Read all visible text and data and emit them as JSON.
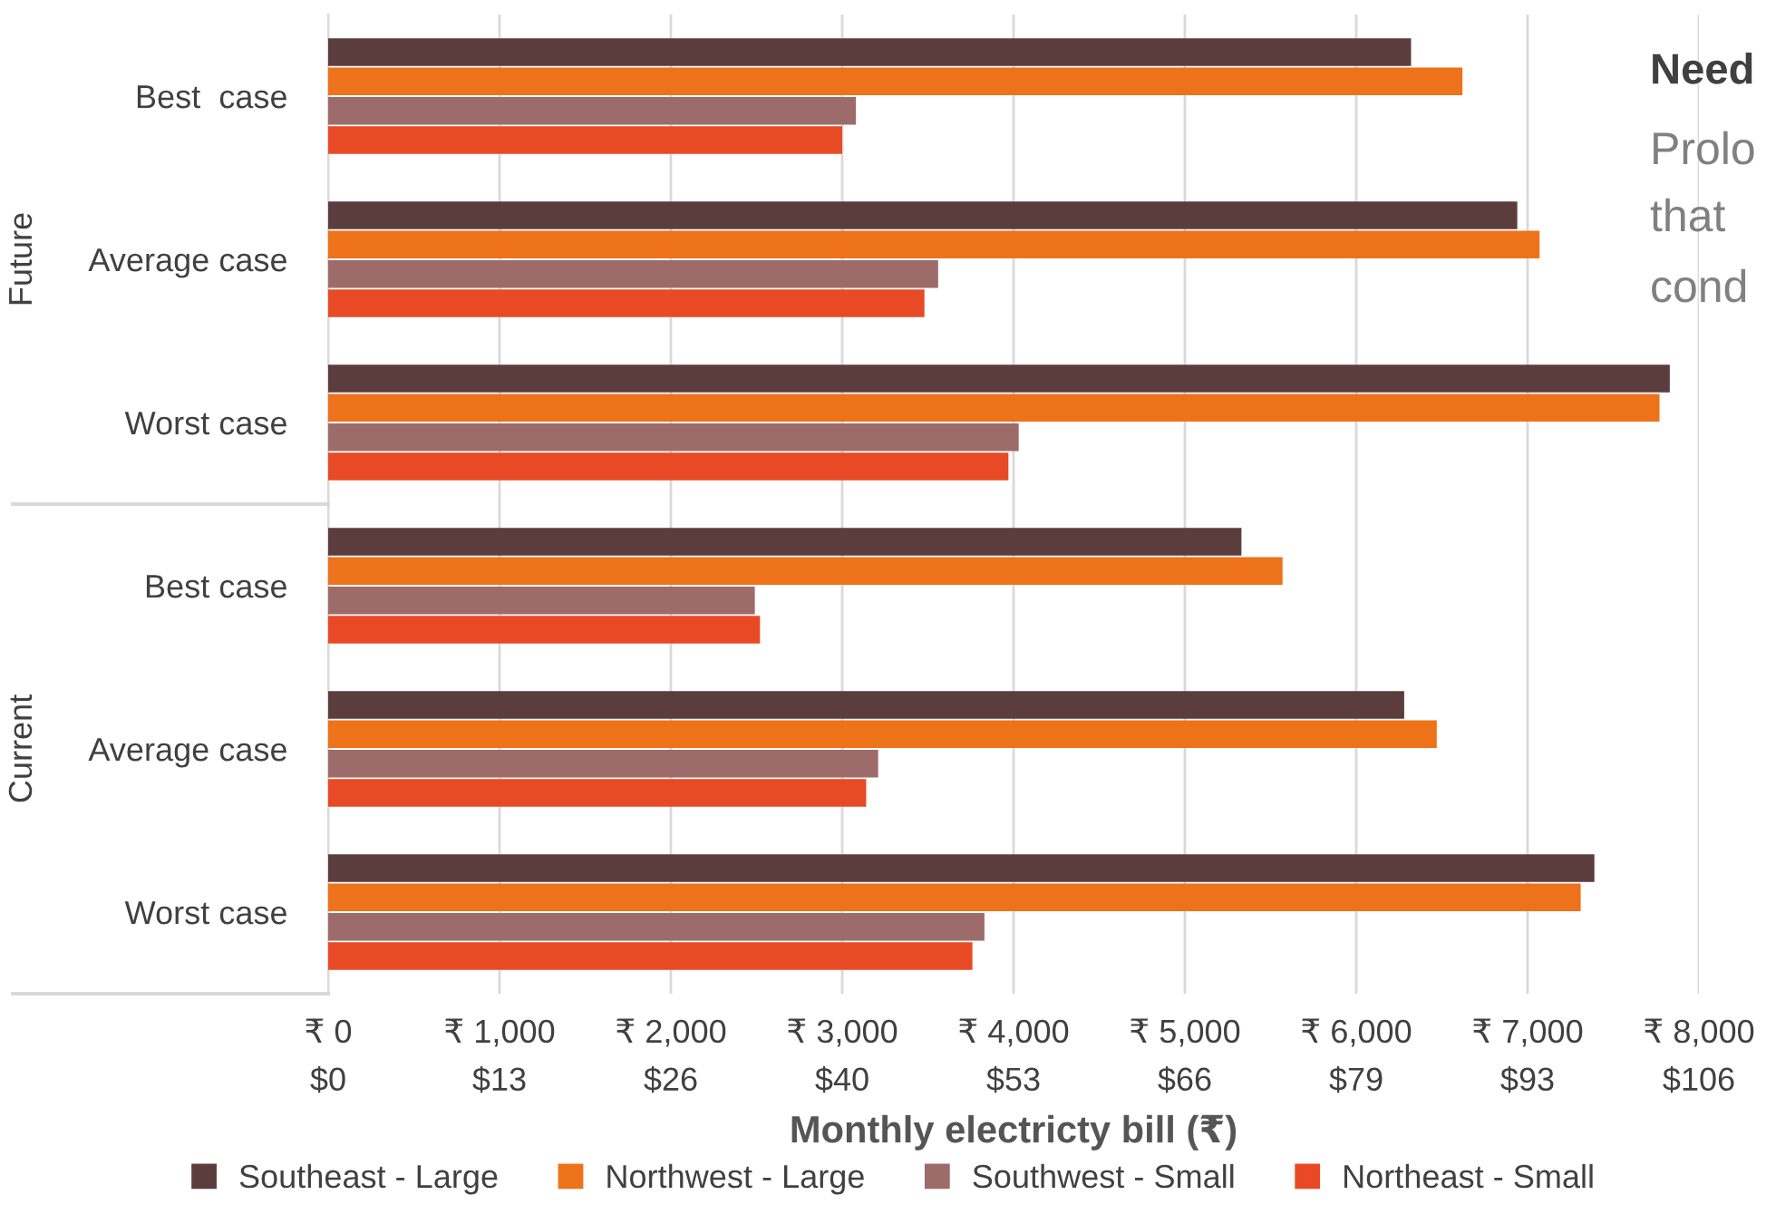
{
  "chart_data": {
    "type": "bar",
    "orientation": "horizontal",
    "xlabel": "Monthly electricty bill (₹)",
    "categories": [
      "Best  case",
      "Average case",
      "Worst case",
      "Best case",
      "Average case",
      "Worst case"
    ],
    "series": [
      {
        "name": "Southeast - Large",
        "color": "#5c3d3e",
        "values": [
          6320,
          6940,
          7830,
          5330,
          6280,
          7390
        ]
      },
      {
        "name": "Northwest - Large",
        "color": "#ee7219",
        "values": [
          6620,
          7070,
          7770,
          5570,
          6470,
          7310
        ]
      },
      {
        "name": "Southwest - Small",
        "color": "#9e6b6b",
        "values": [
          3080,
          3560,
          4030,
          2490,
          3210,
          3830
        ]
      },
      {
        "name": "Northeast - Small",
        "color": "#e84a25",
        "values": [
          3000,
          3480,
          3970,
          2520,
          3140,
          3760
        ]
      }
    ],
    "xlim": [
      0,
      8000
    ],
    "xticks": [
      {
        "value": 0,
        "label": "₹ 0"
      },
      {
        "value": 1000,
        "label": "₹ 1,000"
      },
      {
        "value": 2000,
        "label": "₹ 2,000"
      },
      {
        "value": 3000,
        "label": "₹ 3,000"
      },
      {
        "value": 4000,
        "label": "₹ 4,000"
      },
      {
        "value": 5000,
        "label": "₹ 5,000"
      },
      {
        "value": 6000,
        "label": "₹ 6,000"
      },
      {
        "value": 7000,
        "label": "₹ 7,000"
      },
      {
        "value": 8000,
        "label": "₹ 8,000"
      }
    ],
    "x2lim": [
      0,
      105.84
    ],
    "x2ticks": [
      {
        "value": 0,
        "label": "$0"
      },
      {
        "value": 13.23,
        "label": "$13"
      },
      {
        "value": 26.46,
        "label": "$26"
      },
      {
        "value": 39.69,
        "label": "$40"
      },
      {
        "value": 52.92,
        "label": "$53"
      },
      {
        "value": 66.15,
        "label": "$66"
      },
      {
        "value": 79.38,
        "label": "$79"
      },
      {
        "value": 92.61,
        "label": "$93"
      },
      {
        "value": 105.84,
        "label": "$106"
      }
    ],
    "grid": "x",
    "legend": "bottom",
    "annotations": [
      "Future",
      "Current",
      "Need",
      "Prolo",
      "that",
      "cond"
    ]
  }
}
